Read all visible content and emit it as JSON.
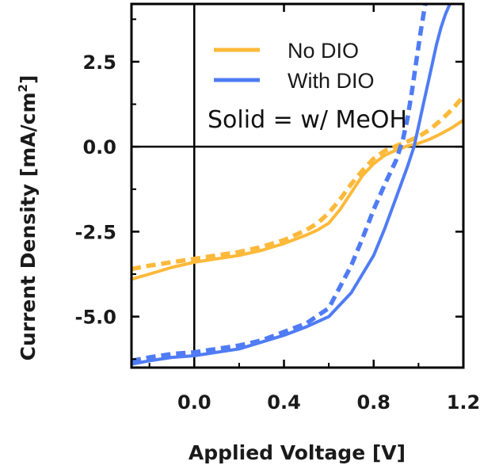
{
  "chart_data": {
    "type": "line",
    "title": "",
    "xlabel": "Applied Voltage [V]",
    "ylabel_main": "Current Density [mA/cm",
    "ylabel_sup": "2",
    "ylabel_close": "]",
    "xlim": [
      -0.28,
      1.2
    ],
    "ylim": [
      -6.5,
      4.2
    ],
    "xticks": [
      0.0,
      0.4,
      0.8,
      1.2
    ],
    "xtick_labels": [
      "0.0",
      "0.4",
      "0.8",
      "1.2"
    ],
    "yticks": [
      2.5,
      0.0,
      -2.5,
      -5.0
    ],
    "ytick_labels": [
      "2.5",
      "0.0",
      "-2.5",
      "-5.0"
    ],
    "zero_lines": true,
    "legend": [
      {
        "label": "No DIO",
        "color": "#FDB93A"
      },
      {
        "label": "With DIO",
        "color": "#4F7CF5"
      }
    ],
    "legend_position": "top-right",
    "annotation": "Solid = w/ MeOH",
    "series": [
      {
        "name": "No DIO, w/ MeOH",
        "group": "No DIO",
        "style": "solid",
        "color": "#FDB93A",
        "x": [
          -0.28,
          -0.2,
          -0.1,
          0.0,
          0.1,
          0.2,
          0.3,
          0.4,
          0.5,
          0.55,
          0.6,
          0.65,
          0.7,
          0.75,
          0.8,
          0.85,
          0.9,
          0.95,
          1.0,
          1.05,
          1.1,
          1.15,
          1.2
        ],
        "y": [
          -3.9,
          -3.75,
          -3.55,
          -3.4,
          -3.3,
          -3.2,
          -3.05,
          -2.85,
          -2.6,
          -2.45,
          -2.25,
          -1.85,
          -1.35,
          -0.85,
          -0.5,
          -0.25,
          -0.1,
          0.02,
          0.1,
          0.22,
          0.38,
          0.56,
          0.78
        ]
      },
      {
        "name": "No DIO, no MeOH",
        "group": "No DIO",
        "style": "dashed",
        "color": "#FDB93A",
        "x": [
          -0.28,
          -0.2,
          -0.1,
          0.0,
          0.1,
          0.2,
          0.3,
          0.4,
          0.5,
          0.55,
          0.6,
          0.65,
          0.7,
          0.75,
          0.8,
          0.85,
          0.9,
          0.95,
          1.0,
          1.05,
          1.1,
          1.15,
          1.2
        ],
        "y": [
          -3.6,
          -3.5,
          -3.4,
          -3.3,
          -3.2,
          -3.1,
          -2.95,
          -2.75,
          -2.45,
          -2.25,
          -1.95,
          -1.55,
          -1.1,
          -0.7,
          -0.35,
          -0.12,
          0.02,
          0.15,
          0.3,
          0.5,
          0.78,
          1.1,
          1.48
        ]
      },
      {
        "name": "With DIO, w/ MeOH",
        "group": "With DIO",
        "style": "solid",
        "color": "#4F7CF5",
        "x": [
          -0.28,
          -0.2,
          -0.1,
          0.0,
          0.1,
          0.2,
          0.3,
          0.4,
          0.5,
          0.6,
          0.7,
          0.8,
          0.85,
          0.9,
          0.95,
          0.98,
          1.0,
          1.02,
          1.04,
          1.06,
          1.08,
          1.1,
          1.12,
          1.14
        ],
        "y": [
          -6.4,
          -6.3,
          -6.2,
          -6.15,
          -6.05,
          -5.95,
          -5.75,
          -5.55,
          -5.3,
          -5.0,
          -4.3,
          -3.2,
          -2.4,
          -1.5,
          -0.6,
          0.0,
          0.6,
          1.2,
          1.8,
          2.4,
          3.0,
          3.5,
          3.9,
          4.2
        ]
      },
      {
        "name": "With DIO, no MeOH",
        "group": "With DIO",
        "style": "dashed",
        "color": "#4F7CF5",
        "x": [
          -0.28,
          -0.2,
          -0.1,
          0.0,
          0.1,
          0.2,
          0.3,
          0.4,
          0.5,
          0.6,
          0.7,
          0.75,
          0.8,
          0.85,
          0.9,
          0.93,
          0.95,
          0.97,
          0.99,
          1.01,
          1.03
        ],
        "y": [
          -6.3,
          -6.2,
          -6.1,
          -6.05,
          -5.95,
          -5.85,
          -5.7,
          -5.45,
          -5.2,
          -4.75,
          -3.5,
          -2.7,
          -1.85,
          -1.1,
          -0.4,
          0.2,
          0.8,
          1.6,
          2.5,
          3.4,
          4.2
        ]
      }
    ]
  }
}
